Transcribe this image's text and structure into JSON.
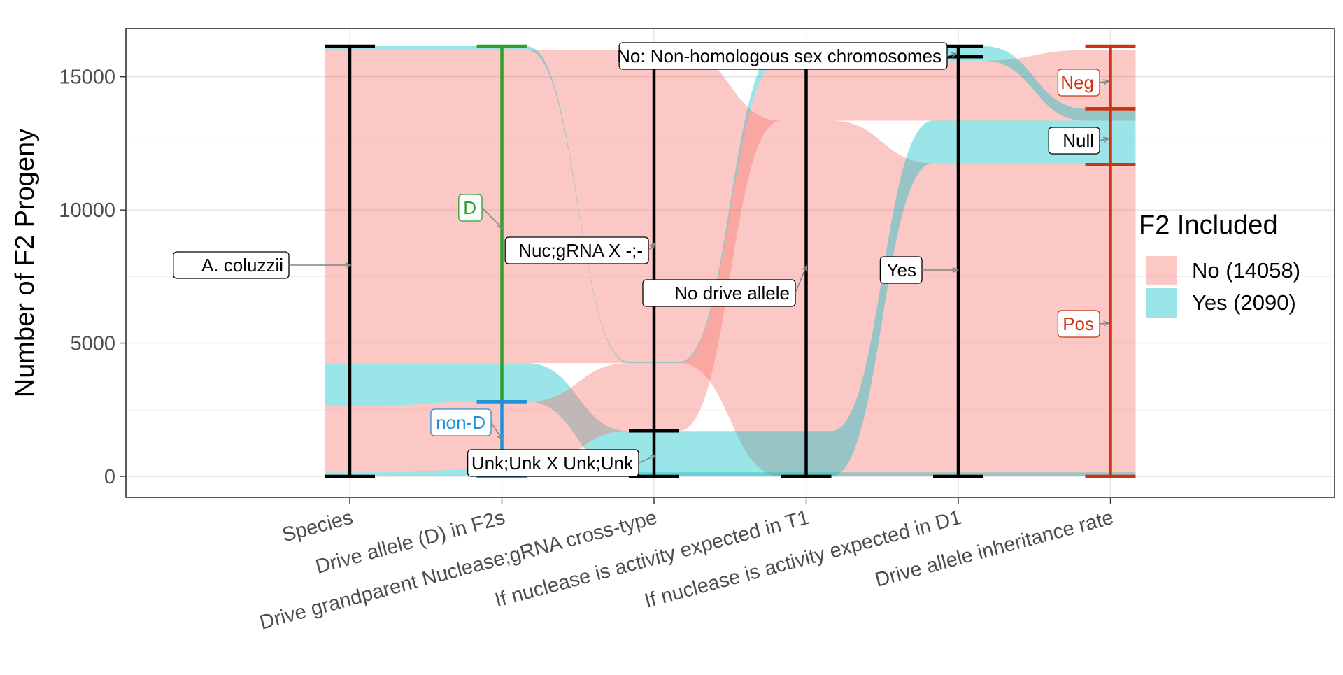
{
  "chart_data": {
    "type": "alluvial",
    "ylabel": "Number of F2 Progeny",
    "ylim": [
      0,
      16148
    ],
    "yticks": [
      0,
      5000,
      10000,
      15000
    ],
    "axes": [
      "Species",
      "Drive allele (D) in F2s",
      "Drive grandparent Nuclease;gRNA cross-type",
      "If nuclease is activity expected in T1",
      "If nuclease is activity expected in D1",
      "Drive allele inheritance rate"
    ],
    "legend": {
      "title": "F2 Included",
      "position": "right",
      "items": [
        {
          "label": "No (14058)",
          "color": "#F8766D"
        },
        {
          "label": "Yes (2090)",
          "color": "#00BFC4"
        }
      ]
    },
    "strata": [
      {
        "axis": 0,
        "label": "A. coluzzii",
        "from": 0,
        "to": 16148,
        "bar_color": "#000000",
        "label_color": "#000000"
      },
      {
        "axis": 1,
        "label": "D",
        "from": 2800,
        "to": 16148,
        "bar_color": "#2CA02C",
        "label_color": "#2CA02C"
      },
      {
        "axis": 1,
        "label": "non-D",
        "from": 0,
        "to": 2800,
        "bar_color": "#1E90E0",
        "label_color": "#1E90E0"
      },
      {
        "axis": 2,
        "label": "Nuc;gRNA X -;-",
        "from": 1700,
        "to": 16148,
        "bar_color": "#000000",
        "label_color": "#000000"
      },
      {
        "axis": 2,
        "label": "Unk;Unk X Unk;Unk",
        "from": 0,
        "to": 1700,
        "bar_color": "#000000",
        "label_color": "#000000"
      },
      {
        "axis": 3,
        "label": "No drive allele",
        "from": 0,
        "to": 16148,
        "bar_color": "#000000",
        "label_color": "#000000"
      },
      {
        "axis": 4,
        "label": "No: Non-homologous sex chromosomes",
        "from": 15750,
        "to": 16148,
        "bar_color": "#000000",
        "label_color": "#000000"
      },
      {
        "axis": 4,
        "label": "Yes",
        "from": 0,
        "to": 15750,
        "bar_color": "#000000",
        "label_color": "#000000"
      },
      {
        "axis": 5,
        "label": "Neg",
        "from": 13800,
        "to": 16148,
        "bar_color": "#CC3311",
        "label_color": "#CC3311"
      },
      {
        "axis": 5,
        "label": "Null",
        "from": 11700,
        "to": 13800,
        "bar_color": "#CC3311",
        "label_color": "#000000"
      },
      {
        "axis": 5,
        "label": "Pos",
        "from": 0,
        "to": 11700,
        "bar_color": "#CC3311",
        "label_color": "#CC3311"
      }
    ],
    "flows": [
      {
        "color": "#F8766D",
        "points": [
          [
            0,
            4250,
            16000
          ],
          [
            1,
            4250,
            16000
          ],
          [
            2,
            4250,
            16000
          ],
          [
            3,
            0,
            13350
          ],
          [
            4,
            0,
            11750
          ],
          [
            5,
            0,
            11750
          ]
        ]
      },
      {
        "color": "#00BFC4",
        "points": [
          [
            0,
            2650,
            4250
          ],
          [
            1,
            2800,
            4250
          ],
          [
            2,
            0,
            1700
          ],
          [
            3,
            0,
            1700
          ],
          [
            4,
            11750,
            13350
          ],
          [
            5,
            11750,
            13350
          ]
        ]
      },
      {
        "color": "#F8766D",
        "points": [
          [
            0,
            150,
            2650
          ],
          [
            1,
            250,
            2800
          ],
          [
            2,
            1700,
            4250
          ],
          [
            3,
            13350,
            15600
          ],
          [
            4,
            13350,
            15600
          ],
          [
            5,
            13350,
            16000
          ]
        ]
      },
      {
        "color": "#00BFC4",
        "points": [
          [
            0,
            16000,
            16148
          ],
          [
            1,
            16000,
            16148
          ],
          [
            2,
            4250,
            4300
          ],
          [
            3,
            15600,
            16148
          ],
          [
            4,
            15600,
            16148
          ],
          [
            5,
            13350,
            13800
          ]
        ]
      },
      {
        "color": "#00BFC4",
        "points": [
          [
            0,
            0,
            150
          ],
          [
            1,
            0,
            250
          ],
          [
            2,
            0,
            150
          ],
          [
            3,
            0,
            150
          ],
          [
            4,
            0,
            150
          ],
          [
            5,
            0,
            150
          ]
        ]
      }
    ]
  }
}
